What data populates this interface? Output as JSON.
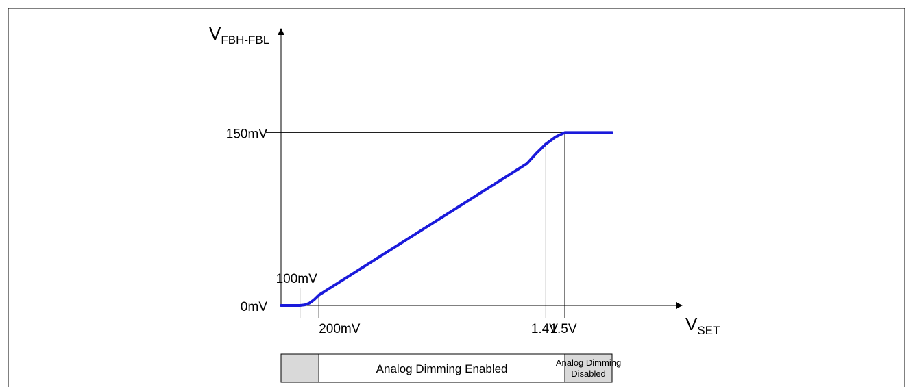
{
  "chart_data": {
    "type": "line",
    "title": "",
    "y_axis": {
      "main": "V",
      "sub": "FBH-FBL"
    },
    "x_axis": {
      "main": "V",
      "sub": "SET"
    },
    "y_ticks": [
      {
        "label": "0mV",
        "value": 0
      },
      {
        "label": "150mV",
        "value": 150
      }
    ],
    "x_markers": [
      {
        "label": "100mV",
        "value": 0.1,
        "label_pos": "above"
      },
      {
        "label": "200mV",
        "value": 0.2,
        "label_pos": "below"
      },
      {
        "label": "1.4V",
        "value": 1.4,
        "label_pos": "below"
      },
      {
        "label": "1.5V",
        "value": 1.5,
        "label_pos": "below"
      }
    ],
    "xlim": [
      0,
      1.75
    ],
    "ylim": [
      0,
      190
    ],
    "series": [
      {
        "color": "#1a1adb",
        "points": [
          [
            0.0,
            0
          ],
          [
            0.1,
            0
          ],
          [
            0.125,
            0.5
          ],
          [
            0.15,
            2
          ],
          [
            0.175,
            5
          ],
          [
            0.2,
            9
          ],
          [
            1.3,
            123
          ],
          [
            1.35,
            132
          ],
          [
            1.4,
            140
          ],
          [
            1.45,
            146
          ],
          [
            1.5,
            150
          ],
          [
            1.75,
            150
          ]
        ]
      }
    ],
    "regions": [
      {
        "label": "",
        "from": 0,
        "to": 0.2,
        "fill": "#d9d9d9"
      },
      {
        "label": "Analog Dimming Enabled",
        "from": 0.2,
        "to": 1.5,
        "fill": "#ffffff"
      },
      {
        "label": "Analog Dimming\nDisabled",
        "from": 1.5,
        "to": 1.75,
        "fill": "#d9d9d9"
      }
    ]
  }
}
